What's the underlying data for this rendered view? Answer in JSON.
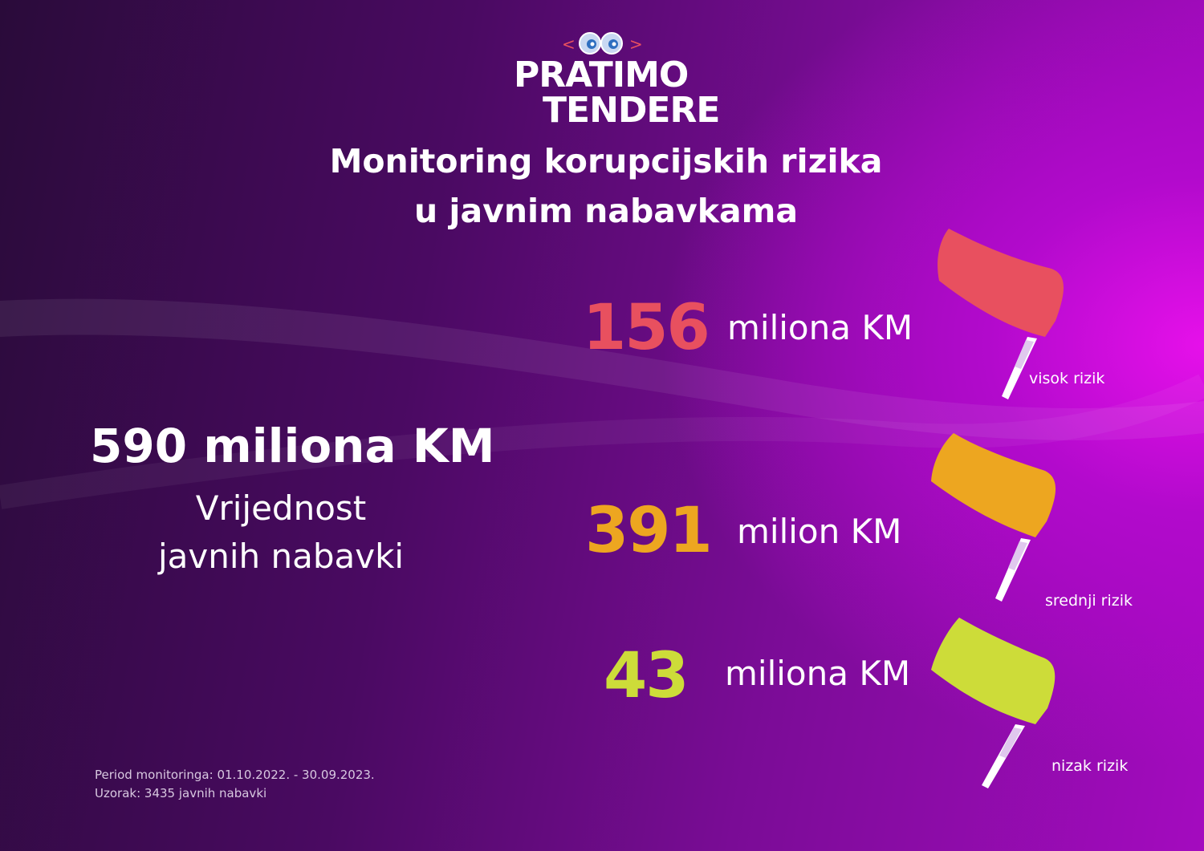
{
  "logo": {
    "line1": "PRATIMO",
    "line2": "TENDERE"
  },
  "title": {
    "line1": "Monitoring korupcijskih rizika",
    "line2": "u javnim nabavkama"
  },
  "total": {
    "value": "590 miliona KM",
    "label_line1": "Vrijednost",
    "label_line2": "javnih nabavki"
  },
  "risks": [
    {
      "value": "156",
      "unit": "miliona KM",
      "label": "visok rizik",
      "color": "#e8505f"
    },
    {
      "value": "391",
      "unit": "milion KM",
      "label": "srednji rizik",
      "color": "#eda620"
    },
    {
      "value": "43",
      "unit": "miliona KM",
      "label": "nizak rizik",
      "color": "#cddc39"
    }
  ],
  "footer": {
    "period": "Period monitoringa: 01.10.2022. - 30.09.2023.",
    "sample": "Uzorak: 3435 javnih nabavki"
  },
  "icons": [
    "eyes-icon",
    "flag-icon"
  ]
}
